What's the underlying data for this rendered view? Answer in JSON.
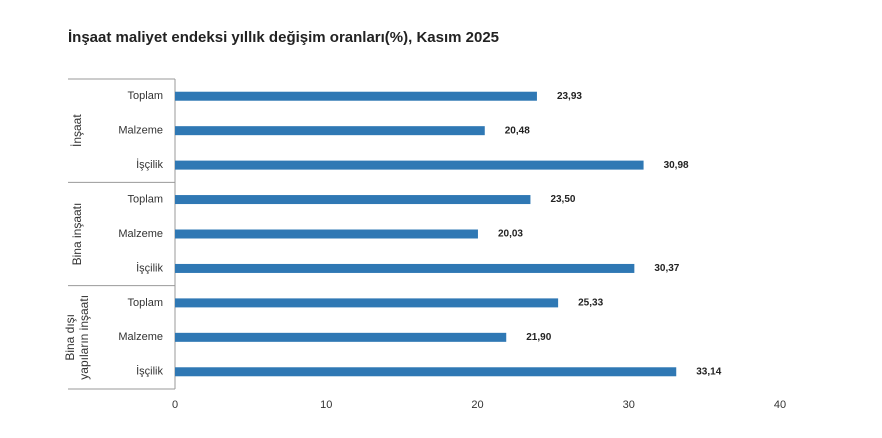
{
  "chart_data": {
    "type": "bar",
    "orientation": "horizontal",
    "title": "İnşaat maliyet endeksi yıllık değişim oranları(%), Kasım 2025",
    "color": "#2f78b4",
    "groups": [
      {
        "name": "İnşaat",
        "categories": [
          "Toplam",
          "Malzeme",
          "İşçilik"
        ],
        "values": [
          23.93,
          20.48,
          30.98
        ],
        "value_labels": [
          "23,93",
          "20,48",
          "30,98"
        ]
      },
      {
        "name": "Bina inşaatı",
        "categories": [
          "Toplam",
          "Malzeme",
          "İşçilik"
        ],
        "values": [
          23.5,
          20.03,
          30.37
        ],
        "value_labels": [
          "23,50",
          "20,03",
          "30,37"
        ]
      },
      {
        "name": "Bina dışı yapıların inşaatı",
        "categories": [
          "Toplam",
          "Malzeme",
          "İşçilik"
        ],
        "values": [
          25.33,
          21.9,
          33.14
        ],
        "value_labels": [
          "25,33",
          "21,90",
          "33,14"
        ]
      }
    ],
    "xlim": [
      0,
      40
    ],
    "xticks": [
      0,
      10,
      20,
      30,
      40
    ],
    "grid": false
  }
}
